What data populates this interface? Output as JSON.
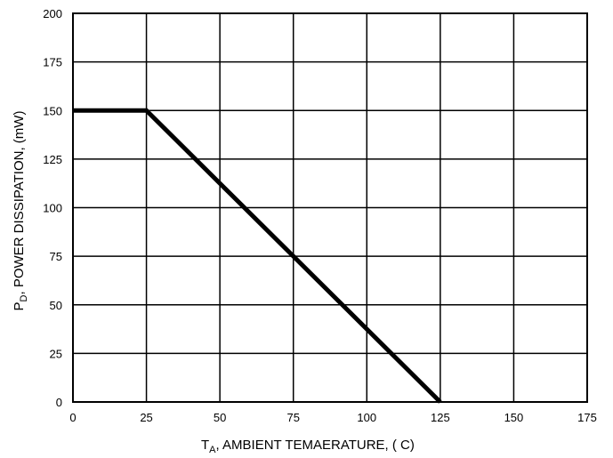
{
  "chart_data": {
    "type": "line",
    "xlabel": {
      "main": "T",
      "sub": "A",
      "rest": ", AMBIENT TEMAERATURE, ( C)"
    },
    "ylabel": {
      "main": "P",
      "sub": "D",
      "rest": ", POWER DISSIPATION, (mW)"
    },
    "xlim": [
      0,
      175
    ],
    "ylim": [
      0,
      200
    ],
    "xticks": [
      "0",
      "25",
      "50",
      "75",
      "100",
      "125",
      "150",
      "175"
    ],
    "yticks": [
      "0",
      "25",
      "50",
      "75",
      "100",
      "125",
      "150",
      "175",
      "200"
    ],
    "grid": true,
    "series": [
      {
        "x": [
          0,
          25,
          125
        ],
        "y": [
          150,
          150,
          0
        ],
        "color": "#000000"
      }
    ]
  }
}
